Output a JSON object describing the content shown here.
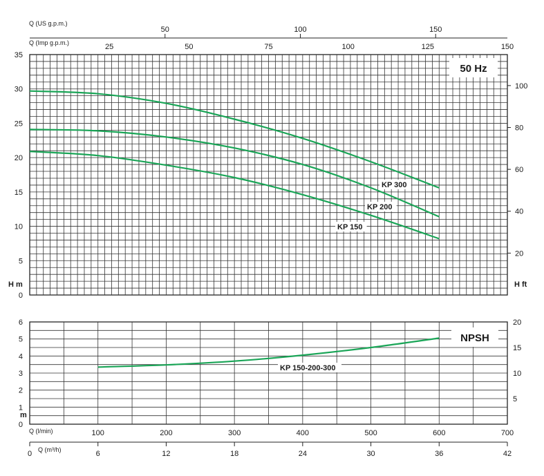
{
  "chart_data": [
    {
      "type": "line",
      "title": "",
      "badge": "50 Hz",
      "x_axes": {
        "q_us_gpm": {
          "label": "Q (US g.p.m.)",
          "range": [
            0,
            176.5
          ],
          "ticks": [
            50,
            100,
            150
          ]
        },
        "q_imp_gpm": {
          "label": "Q (Imp g.p.m.)",
          "range": [
            0,
            150
          ],
          "ticks": [
            25,
            50,
            75,
            100,
            125,
            150
          ]
        }
      },
      "ylabel_left": "H m",
      "ylabel_right": "H ft",
      "ylim_left": [
        0,
        35
      ],
      "yticks_left": [
        0,
        5,
        10,
        15,
        20,
        25,
        30,
        35
      ],
      "ylim_right": [
        0,
        114.8
      ],
      "yticks_right": [
        20,
        40,
        60,
        80,
        100
      ],
      "grid": true,
      "x_unit": "l/min",
      "series": [
        {
          "name": "KP 300",
          "x": [
            0,
            100,
            200,
            300,
            400,
            500,
            600
          ],
          "y": [
            29.7,
            29.3,
            27.9,
            25.6,
            22.8,
            19.4,
            15.6
          ]
        },
        {
          "name": "KP 200",
          "x": [
            0,
            100,
            200,
            300,
            400,
            500,
            600
          ],
          "y": [
            24.1,
            23.9,
            23.0,
            21.4,
            19.0,
            15.6,
            11.4
          ]
        },
        {
          "name": "KP 150",
          "x": [
            0,
            100,
            200,
            300,
            400,
            500,
            600
          ],
          "y": [
            20.9,
            20.3,
            18.9,
            17.1,
            14.6,
            11.6,
            8.2
          ]
        }
      ]
    },
    {
      "type": "line",
      "title": "",
      "badge": "NPSH",
      "ylabel_left": "m",
      "ylim_left": [
        0,
        6
      ],
      "yticks_left": [
        0,
        1,
        2,
        3,
        4,
        5,
        6
      ],
      "ylim_right": [
        0,
        20
      ],
      "yticks_right": [
        5,
        10,
        15,
        20
      ],
      "grid": true,
      "x_axes": {
        "q_lmin": {
          "label": "Q (l/min)",
          "range": [
            0,
            700
          ],
          "ticks": [
            100,
            200,
            300,
            400,
            500,
            600,
            700
          ]
        },
        "q_m3h": {
          "label": "Q (m³/h)",
          "range": [
            0,
            42
          ],
          "ticks": [
            0,
            6,
            12,
            18,
            24,
            30,
            36,
            42
          ]
        }
      },
      "series": [
        {
          "name": "KP 150-200-300",
          "x": [
            100,
            200,
            300,
            400,
            500,
            600
          ],
          "y": [
            3.35,
            3.48,
            3.7,
            4.05,
            4.5,
            5.05
          ]
        }
      ]
    }
  ]
}
